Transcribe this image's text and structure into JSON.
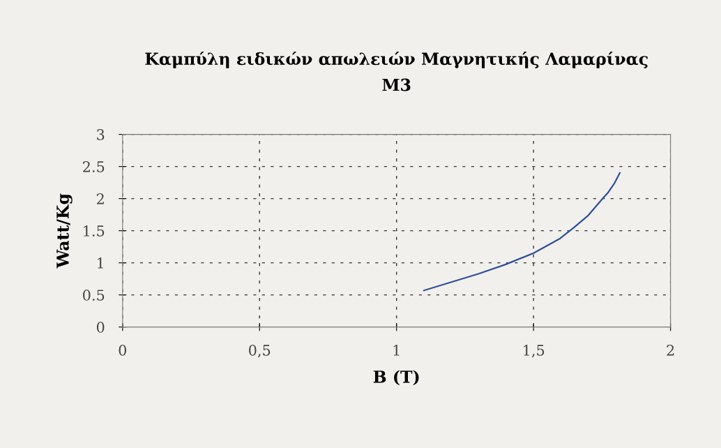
{
  "chart_data": {
    "type": "line",
    "title": "Καμπύλη ειδικών απωλειών Μαγνητικής Λαμαρίνας\nM3",
    "xlabel": "B (T)",
    "ylabel": "Watt/Kg",
    "x": [
      1.1,
      1.2,
      1.3,
      1.395,
      1.5,
      1.597,
      1.647,
      1.7,
      1.75,
      1.773,
      1.794,
      1.815
    ],
    "series": [
      {
        "color": "#2e4f9a",
        "values": [
          0.57,
          0.7,
          0.83,
          0.97,
          1.15,
          1.38,
          1.55,
          1.74,
          1.99,
          2.1,
          2.23,
          2.4
        ]
      }
    ],
    "xlim": [
      0,
      2
    ],
    "xticks": [
      0,
      {
        "value": 0.5,
        "label": "0,5"
      },
      1,
      {
        "value": 1.5,
        "label": "1,5"
      },
      2
    ],
    "ylim": [
      0,
      3
    ],
    "yticks": [
      0,
      0.5,
      1,
      1.5,
      2,
      2.5,
      3
    ],
    "grid": true,
    "marker": "none",
    "line_style": "solid"
  }
}
